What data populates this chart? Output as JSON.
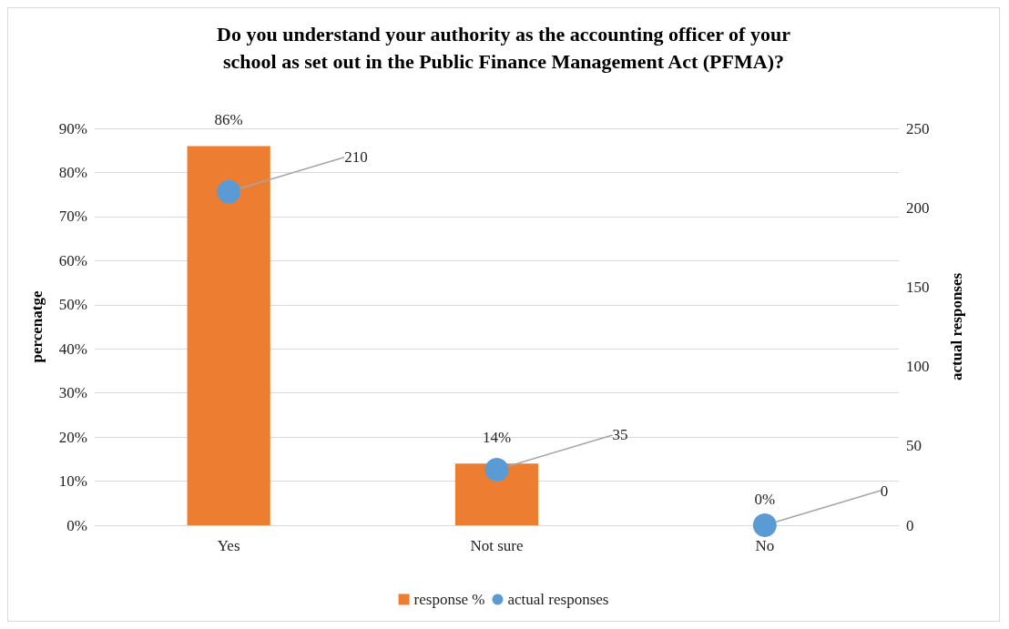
{
  "chart_data": {
    "type": "bar",
    "title": "Do you understand your authority as the accounting officer of your\nschool as set out in the Public Finance Management Act (PFMA)?",
    "categories": [
      "Yes",
      "Not sure",
      "No"
    ],
    "series": [
      {
        "name": "response %",
        "color": "#ed7d31",
        "values": [
          86,
          14,
          0
        ],
        "value_labels": [
          "86%",
          "14%",
          "0%"
        ]
      },
      {
        "name": "actual responses",
        "type": "scatter",
        "axis": "y2",
        "color": "#5b9bd5",
        "values": [
          210,
          35,
          0
        ],
        "value_labels": [
          "210",
          "35",
          "0"
        ]
      }
    ],
    "ylabel": "percenatge",
    "y2label": "actual responses",
    "ylim": [
      0,
      90
    ],
    "yticks": [
      {
        "value": 0,
        "label": "0%"
      },
      {
        "value": 10,
        "label": "10%"
      },
      {
        "value": 20,
        "label": "20%"
      },
      {
        "value": 30,
        "label": "30%"
      },
      {
        "value": 40,
        "label": "40%"
      },
      {
        "value": 50,
        "label": "50%"
      },
      {
        "value": 60,
        "label": "60%"
      },
      {
        "value": 70,
        "label": "70%"
      },
      {
        "value": 80,
        "label": "80%"
      },
      {
        "value": 90,
        "label": "90%"
      }
    ],
    "y2lim": [
      0,
      250
    ],
    "y2ticks": [
      0,
      50,
      100,
      150,
      200,
      250
    ],
    "grid": "y",
    "legend": "bottom",
    "marker": "circle"
  }
}
